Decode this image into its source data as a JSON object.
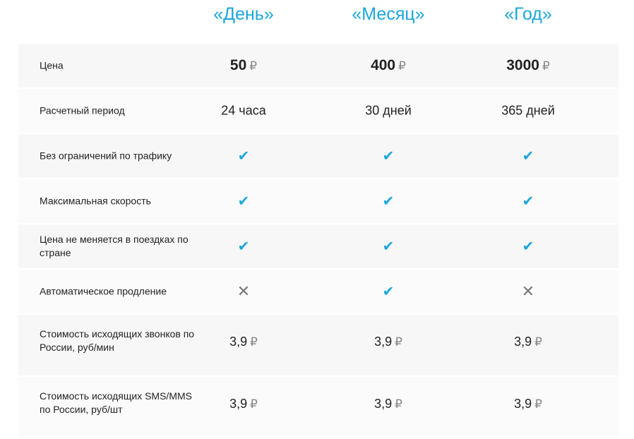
{
  "plans": [
    "«День»",
    "«Месяц»",
    "«Год»"
  ],
  "currency": "₽",
  "accent": "#1aa6dc",
  "rows": [
    {
      "label": "Цена",
      "type": "price",
      "values": [
        "50",
        "400",
        "3000"
      ]
    },
    {
      "label": "Расчетный период",
      "type": "text",
      "values": [
        "24 часа",
        "30 дней",
        "365 дней"
      ]
    },
    {
      "label": "Без ограничений по трафику",
      "type": "bool",
      "values": [
        true,
        true,
        true
      ]
    },
    {
      "label": "Максимальная скорость",
      "type": "bool",
      "values": [
        true,
        true,
        true
      ]
    },
    {
      "label": "Цена не меняется в поездках по стране",
      "type": "bool",
      "values": [
        true,
        true,
        true
      ]
    },
    {
      "label": "Автоматическое продление",
      "type": "bool",
      "values": [
        false,
        true,
        false
      ]
    },
    {
      "label": "Стоимость исходящих звонков по России, руб/мин",
      "type": "money",
      "values": [
        "3,9",
        "3,9",
        "3,9"
      ]
    },
    {
      "label": "Стоимость исходящих SMS/MMS по России, руб/шт",
      "type": "money",
      "values": [
        "3,9",
        "3,9",
        "3,9"
      ]
    }
  ]
}
